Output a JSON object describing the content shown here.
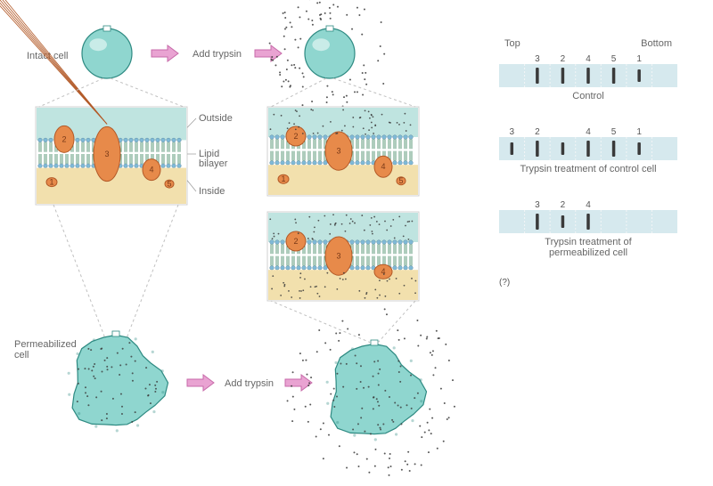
{
  "labels": {
    "intact": "Intact cell",
    "permeabilized": "Permeabilized\ncell",
    "add_trypsin": "Add trypsin",
    "outside": "Outside",
    "lipid": "Lipid\nbilayer",
    "inside": "Inside",
    "top": "Top",
    "bottom": "Bottom",
    "gel_control": "Control",
    "gel_trypsin_control": "Trypsin treatment of control cell",
    "gel_trypsin_perm": "Trypsin treatment of\npermeabilized cell"
  },
  "colors": {
    "cell_fill": "#8fd6cf",
    "cell_stroke": "#2e8a82",
    "cell_highlight": "#d7f1ee",
    "arrow_fill": "#e9a3d2",
    "arrow_stroke": "#c76aa9",
    "box_stroke": "#d0d0d0",
    "box_outside": "#bfe4e0",
    "box_inside": "#f2e0ad",
    "lipid_head": "#7fb9d6",
    "lipid_tail": "#4a8f6a",
    "protein_fill": "#e78a4a",
    "protein_stroke": "#b35a28",
    "trypsin_dot": "#3a3a3a",
    "zoom_line": "#c0c0c0",
    "gel_bg": "#d6e9ee",
    "gel_lane_sep": "#f7f7f7",
    "gel_band": "#3a3a3a",
    "text": "#666666"
  },
  "proteins": {
    "p1": {
      "num": "1"
    },
    "p2": {
      "num": "2"
    },
    "p3": {
      "num": "3"
    },
    "p4": {
      "num": "4"
    },
    "p5": {
      "num": "5"
    }
  },
  "gels": {
    "lane_count": 7,
    "rows": [
      {
        "bands": [
          {
            "lane": 1,
            "h": 18,
            "label_top": "3"
          },
          {
            "lane": 2,
            "h": 18,
            "label_top": "2"
          },
          {
            "lane": 3,
            "h": 18,
            "label_top": "4"
          },
          {
            "lane": 4,
            "h": 18,
            "label_top": "5"
          },
          {
            "lane": 5,
            "h": 14,
            "label_top": "1"
          }
        ]
      },
      {
        "bands": [
          {
            "lane": 0,
            "h": 14,
            "label_top": "3"
          },
          {
            "lane": 1,
            "h": 18,
            "label_top": "2"
          },
          {
            "lane": 2,
            "h": 14
          },
          {
            "lane": 3,
            "h": 18,
            "label_top": "4"
          },
          {
            "lane": 4,
            "h": 18,
            "label_top": "5"
          },
          {
            "lane": 5,
            "h": 14,
            "label_top": "1"
          }
        ]
      },
      {
        "bands": [
          {
            "lane": 1,
            "h": 18,
            "label_top": "3"
          },
          {
            "lane": 2,
            "h": 14,
            "label_top": "2"
          },
          {
            "lane": 3,
            "h": 18,
            "label_top": "4"
          }
        ]
      }
    ]
  },
  "figure_label": "(?)"
}
